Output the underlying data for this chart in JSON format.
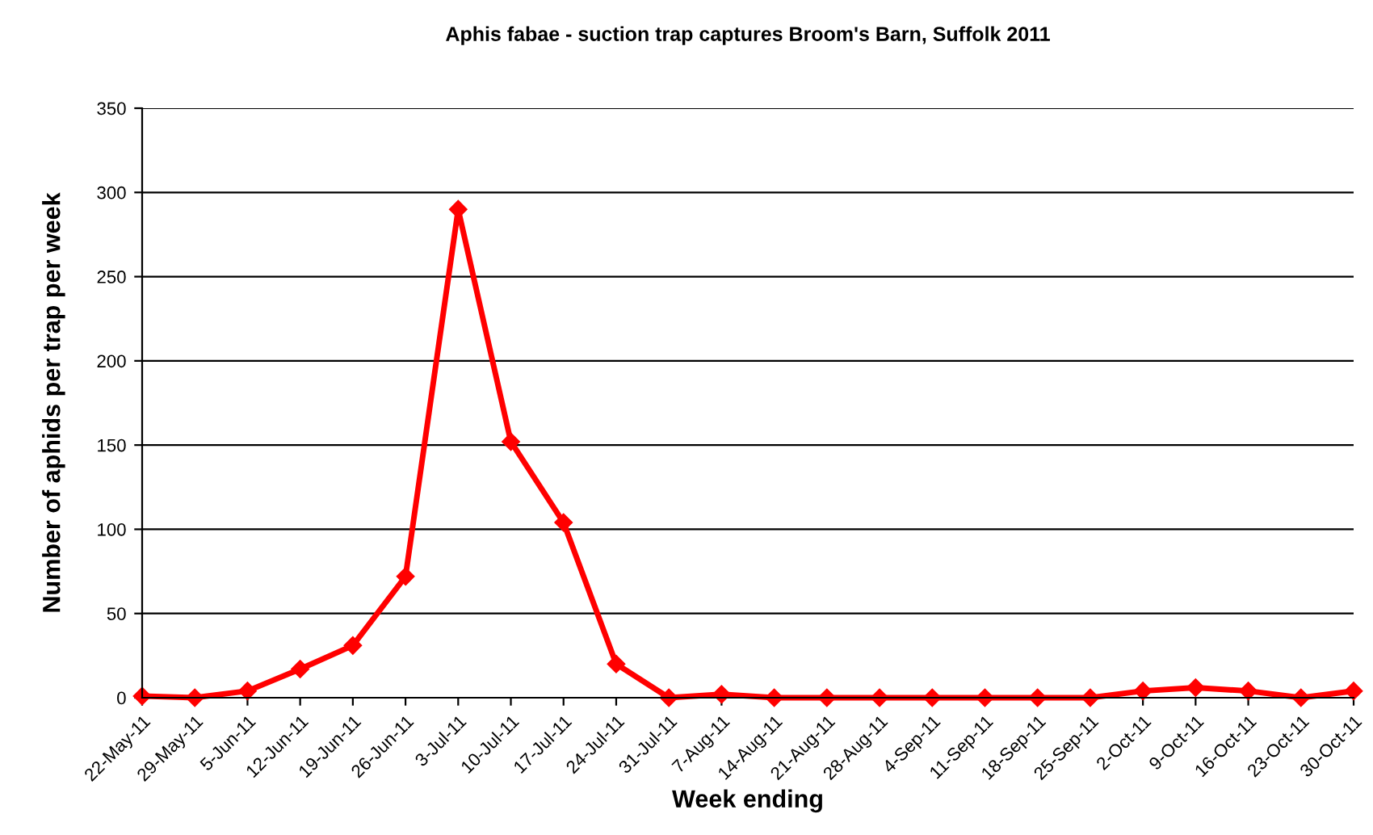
{
  "chart_data": {
    "type": "line",
    "title": "Aphis fabae - suction trap captures Broom's Barn, Suffolk 2011",
    "xlabel": "Week ending",
    "ylabel": "Number of aphids per trap per week",
    "categories": [
      "22-May-11",
      "29-May-11",
      "5-Jun-11",
      "12-Jun-11",
      "19-Jun-11",
      "26-Jun-11",
      "3-Jul-11",
      "10-Jul-11",
      "17-Jul-11",
      "24-Jul-11",
      "31-Jul-11",
      "7-Aug-11",
      "14-Aug-11",
      "21-Aug-11",
      "28-Aug-11",
      "4-Sep-11",
      "11-Sep-11",
      "18-Sep-11",
      "25-Sep-11",
      "2-Oct-11",
      "9-Oct-11",
      "16-Oct-11",
      "23-Oct-11",
      "30-Oct-11"
    ],
    "series": [
      {
        "color": "#ff0000",
        "values": [
          1,
          0,
          4,
          17,
          31,
          72,
          290,
          152,
          104,
          20,
          0,
          2,
          0,
          0,
          0,
          0,
          0,
          0,
          0,
          4,
          6,
          4,
          0,
          4
        ]
      }
    ],
    "ylim": [
      0,
      350
    ],
    "yticks": [
      0,
      50,
      100,
      150,
      200,
      250,
      300,
      350
    ],
    "grid": "y",
    "marker": "diamond",
    "line_style": "solid",
    "legend": false
  }
}
